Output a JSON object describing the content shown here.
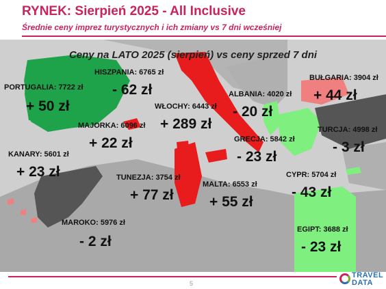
{
  "header": {
    "title": "RYNEK: Sierpień 2025 - All Inclusive",
    "subtitle": "Średnie ceny imprez turystycznych i ich zmiany vs 7 dni wcześniej"
  },
  "map": {
    "title": "Ceny na LATO 2025 (sierpień) vs ceny sprzed 7 dni",
    "colors": {
      "increase": "#e81c1c",
      "increase_light": "#f08080",
      "decrease": "#7ff07f",
      "decrease_green": "#1fa34a",
      "slight_decrease": "#555555",
      "land": "#a9a9a9",
      "sea": "#cfcfcf"
    },
    "destinations": [
      {
        "name": "PORTUGALIA: 7722 zł",
        "change": "+ 50 zł"
      },
      {
        "name": "HISZPANIA: 6765 zł",
        "change": "- 62 zł"
      },
      {
        "name": "WŁOCHY: 6443 zł",
        "change": "+ 289 zł"
      },
      {
        "name": "MAJORKA: 6096 zł",
        "change": "+ 22 zł"
      },
      {
        "name": "KANARY: 5601 zł",
        "change": "+ 23 zł"
      },
      {
        "name": "ALBANIA: 4020 zł",
        "change": "- 20 zł"
      },
      {
        "name": "BUŁGARIA: 3904 zł",
        "change": "+ 44 zł"
      },
      {
        "name": "TURCJA: 4998 zł",
        "change": "- 3 zł"
      },
      {
        "name": "GRECJA: 5842 zł",
        "change": "- 23 zł"
      },
      {
        "name": "TUNEZJA: 3754 zł",
        "change": "+ 77 zł"
      },
      {
        "name": "MALTA: 6553 zł",
        "change": "+ 55 zł"
      },
      {
        "name": "CYPR: 5704 zł",
        "change": "- 43 zł"
      },
      {
        "name": "MAROKO: 5976 zł",
        "change": "- 2 zł"
      },
      {
        "name": "EGIPT: 3688 zł",
        "change": "- 23 zł"
      }
    ]
  },
  "footer": {
    "page_number": "5",
    "logo_top": "TRAVEL",
    "logo_bottom": "DATA"
  }
}
